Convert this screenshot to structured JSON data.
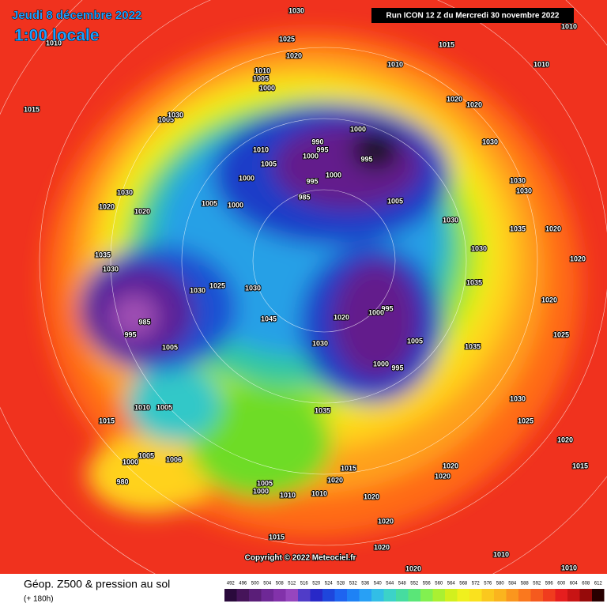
{
  "header": {
    "date": "Jeudi 8 décembre 2022",
    "time": "1:00 locale",
    "run": "Run ICON 12 Z du Mercredi 30 novembre 2022"
  },
  "copyright": "Copyright © 2022 Meteociel.fr",
  "legend": {
    "title": "Géop. Z500 & pression au sol",
    "lead": "(+ 180h)",
    "labels": [
      492,
      496,
      500,
      504,
      508,
      512,
      516,
      520,
      524,
      528,
      532,
      536,
      540,
      544,
      548,
      552,
      556,
      560,
      564,
      568,
      572,
      576,
      580,
      584,
      588,
      592,
      596,
      600,
      604,
      608,
      612
    ]
  },
  "pressure_labels": [
    1030,
    1025,
    1020,
    1010,
    1010,
    1005,
    1000,
    1005,
    1030,
    1015,
    1000,
    990,
    995,
    1010,
    995,
    1000,
    1005,
    1000,
    1000,
    995,
    985,
    1005,
    1000,
    1005,
    1030,
    1020,
    1020,
    1035,
    1030,
    985,
    995,
    1005,
    1030,
    1025,
    1030,
    1045,
    1020,
    995,
    1000,
    1005,
    1030,
    1000,
    995,
    1035,
    1035,
    1035,
    1030,
    1030,
    1030,
    1035,
    1020,
    1020,
    1020,
    1025,
    1030,
    1025,
    1020,
    1015,
    1020,
    1020,
    1010,
    1005,
    1015,
    1005,
    1006,
    980,
    1000,
    1005,
    1000,
    1010,
    1010,
    1020,
    1020,
    1020,
    1015,
    1015,
    1020,
    1020,
    1010,
    1010,
    1010,
    1010,
    1015,
    1020,
    1020,
    1030,
    1030,
    1010
  ]
}
